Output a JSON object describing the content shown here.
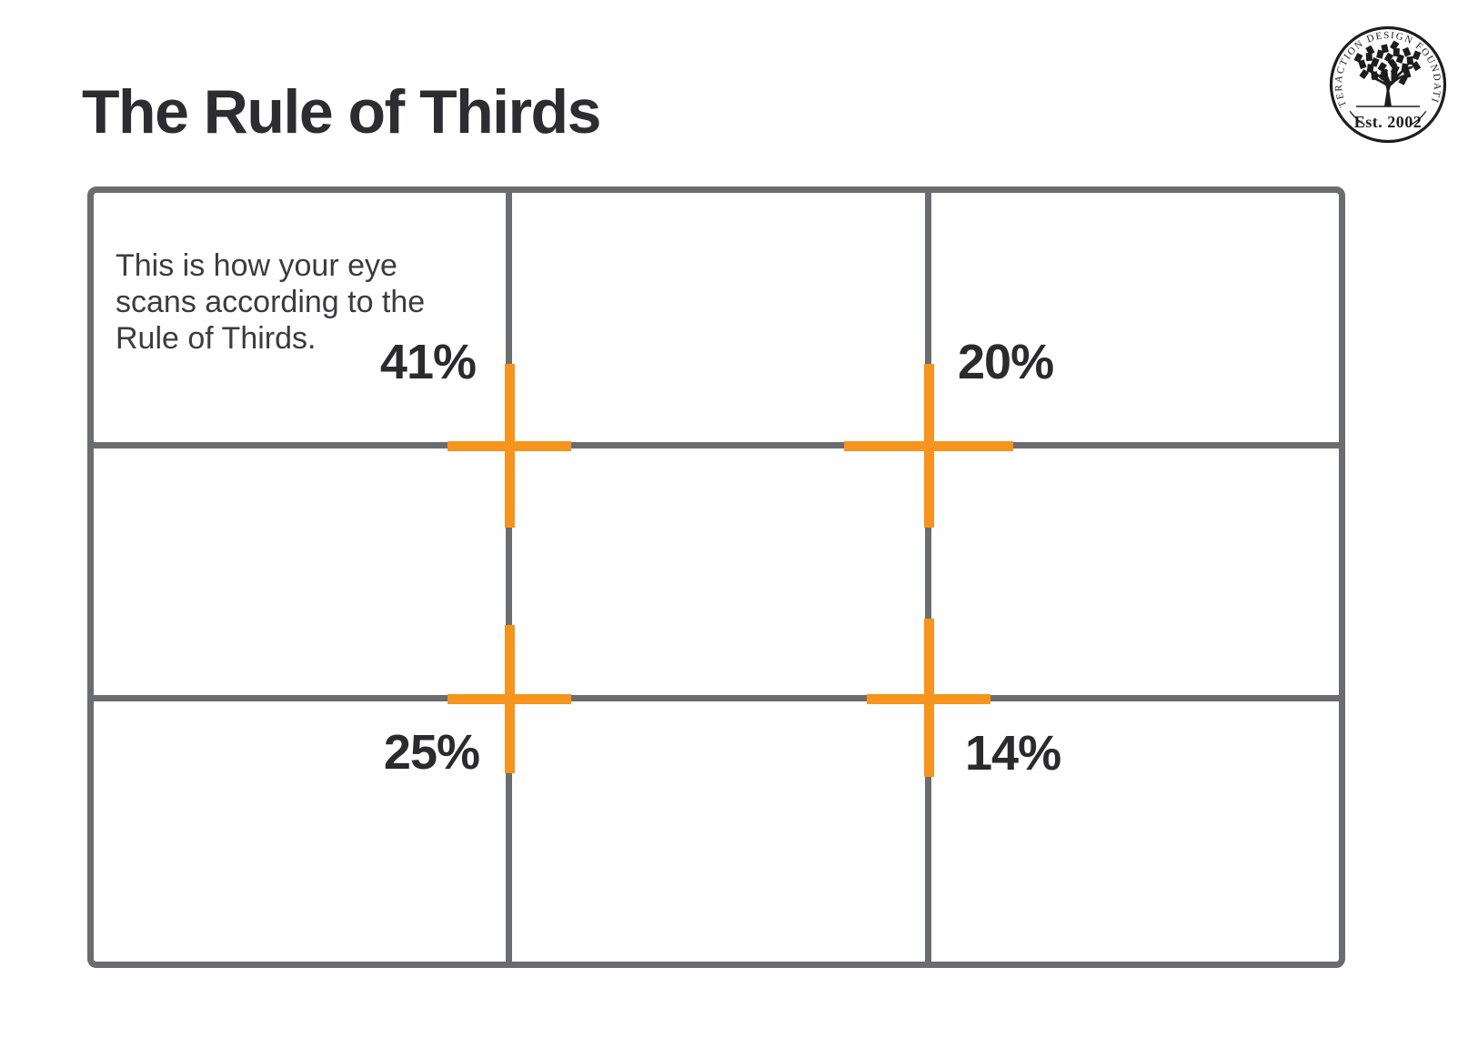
{
  "page": {
    "title": "The Rule of Thirds",
    "background_color": "#FEFEFE"
  },
  "logo": {
    "arc_text": "INTERACTION DESIGN FOUNDATION",
    "established": "Est. 2002"
  },
  "diagram": {
    "description": "This is how your eye scans according to the Rule of Thirds.",
    "grid": {
      "rows": 3,
      "columns": 3
    },
    "grid_line_color": "#6B6C6F",
    "marker_color": "#F7941D",
    "text_color": "#2B2B2E",
    "intersections": [
      {
        "position": "top-left",
        "scan_share": "41%"
      },
      {
        "position": "top-right",
        "scan_share": "20%"
      },
      {
        "position": "bottom-left",
        "scan_share": "25%"
      },
      {
        "position": "bottom-right",
        "scan_share": "14%"
      }
    ]
  }
}
